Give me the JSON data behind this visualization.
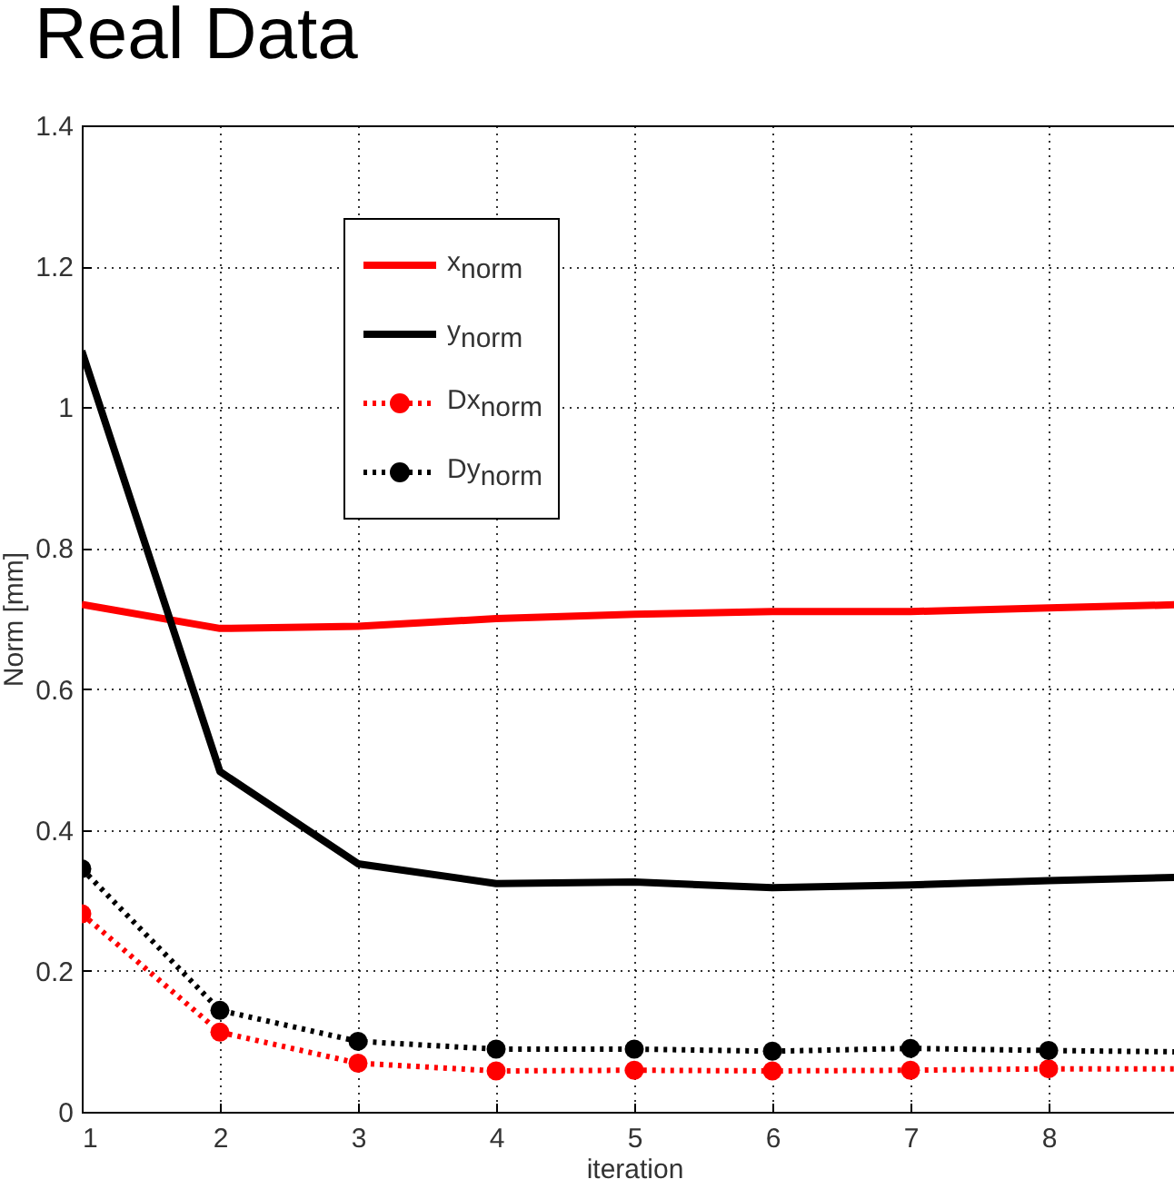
{
  "chart_data": {
    "type": "line",
    "title": "Real Data",
    "xlabel": "iteration",
    "ylabel": "Norm [mm]",
    "x": [
      1,
      2,
      3,
      4,
      5,
      6,
      7,
      8,
      9
    ],
    "series": [
      {
        "name": "x$_{norm}$",
        "color": "#ff0000",
        "line_style": "solid",
        "marker": "none",
        "values": [
          0.72,
          0.686,
          0.689,
          0.7,
          0.706,
          0.71,
          0.71,
          0.715,
          0.72
        ]
      },
      {
        "name": "y$_{norm}$",
        "color": "#000000",
        "line_style": "solid",
        "marker": "none",
        "values": [
          1.08,
          0.483,
          0.352,
          0.324,
          0.326,
          0.318,
          0.322,
          0.328,
          0.333
        ]
      },
      {
        "name": "Dx$_{norm}$",
        "color": "#ff0000",
        "line_style": "dotted",
        "marker": "circle",
        "values": [
          0.281,
          0.113,
          0.069,
          0.058,
          0.059,
          0.058,
          0.059,
          0.061,
          0.061
        ]
      },
      {
        "name": "Dy$_{norm}$",
        "color": "#000000",
        "line_style": "dotted",
        "marker": "circle",
        "values": [
          0.345,
          0.144,
          0.1,
          0.089,
          0.089,
          0.086,
          0.09,
          0.087,
          0.085
        ]
      }
    ],
    "xlim": [
      1,
      9
    ],
    "xticks": [
      1,
      2,
      3,
      4,
      5,
      6,
      7,
      8
    ],
    "ylim": [
      0,
      1.4
    ],
    "yticks": [
      0,
      0.2,
      0.4,
      0.6,
      0.8,
      1,
      1.2,
      1.4
    ],
    "grid": true,
    "legend": "top left"
  }
}
